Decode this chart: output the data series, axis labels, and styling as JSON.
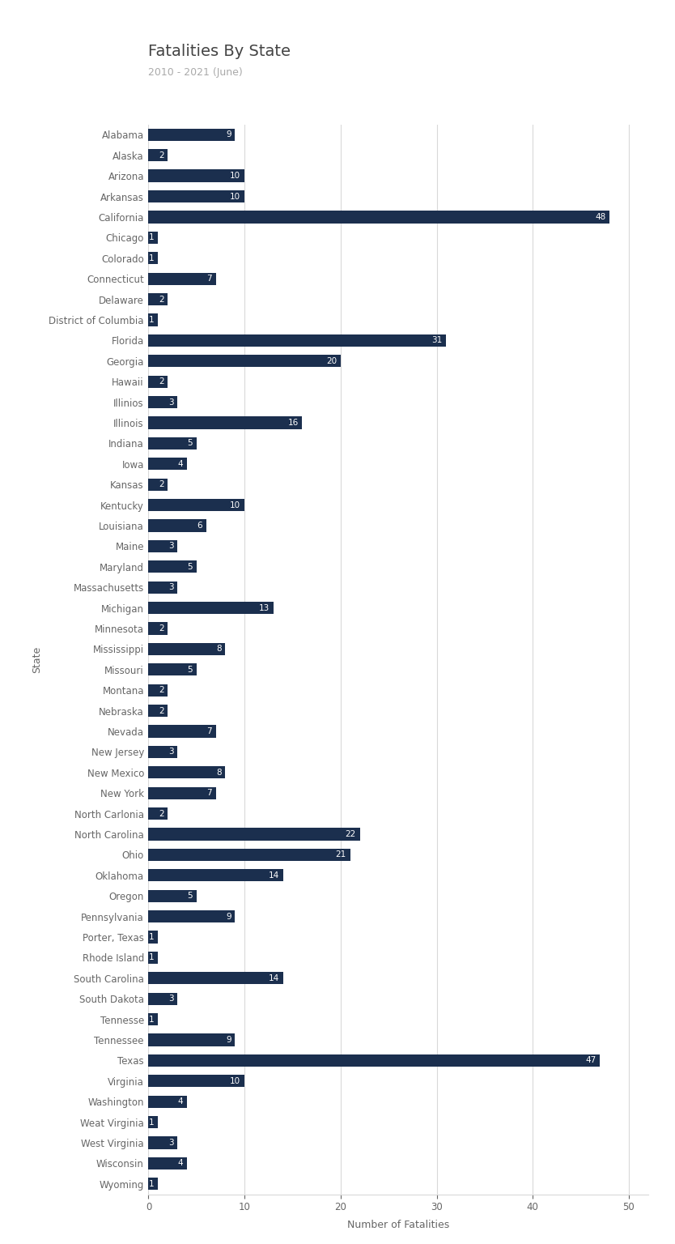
{
  "title": "Fatalities By State",
  "subtitle": "2010 - 2021 (June)",
  "xlabel": "Number of Fatalities",
  "ylabel": "State",
  "bar_color": "#1b2f4e",
  "label_color": "#ffffff",
  "background_color": "#ffffff",
  "grid_color": "#d9d9d9",
  "title_color": "#444444",
  "subtitle_color": "#aaaaaa",
  "axis_label_color": "#666666",
  "tick_color": "#666666",
  "xlim": [
    0,
    52
  ],
  "states": [
    "Alabama",
    "Alaska",
    "Arizona",
    "Arkansas",
    "California",
    "Chicago",
    "Colorado",
    "Connecticut",
    "Delaware",
    "District of Columbia",
    "Florida",
    "Georgia",
    "Hawaii",
    "Illinios",
    "Illinois",
    "Indiana",
    "Iowa",
    "Kansas",
    "Kentucky",
    "Louisiana",
    "Maine",
    "Maryland",
    "Massachusetts",
    "Michigan",
    "Minnesota",
    "Mississippi",
    "Missouri",
    "Montana",
    "Nebraska",
    "Nevada",
    "New Jersey",
    "New Mexico",
    "New York",
    "North Carlonia",
    "North Carolina",
    "Ohio",
    "Oklahoma",
    "Oregon",
    "Pennsylvania",
    "Porter, Texas",
    "Rhode Island",
    "South Carolina",
    "South Dakota",
    "Tennesse",
    "Tennessee",
    "Texas",
    "Virginia",
    "Washington",
    "Weat Virginia",
    "West Virginia",
    "Wisconsin",
    "Wyoming"
  ],
  "values": [
    9,
    2,
    10,
    10,
    48,
    1,
    1,
    7,
    2,
    1,
    31,
    20,
    2,
    3,
    16,
    5,
    4,
    2,
    10,
    6,
    3,
    5,
    3,
    13,
    2,
    8,
    5,
    2,
    2,
    7,
    3,
    8,
    7,
    2,
    22,
    21,
    14,
    5,
    9,
    1,
    1,
    14,
    3,
    1,
    9,
    47,
    10,
    4,
    1,
    3,
    4,
    1
  ]
}
